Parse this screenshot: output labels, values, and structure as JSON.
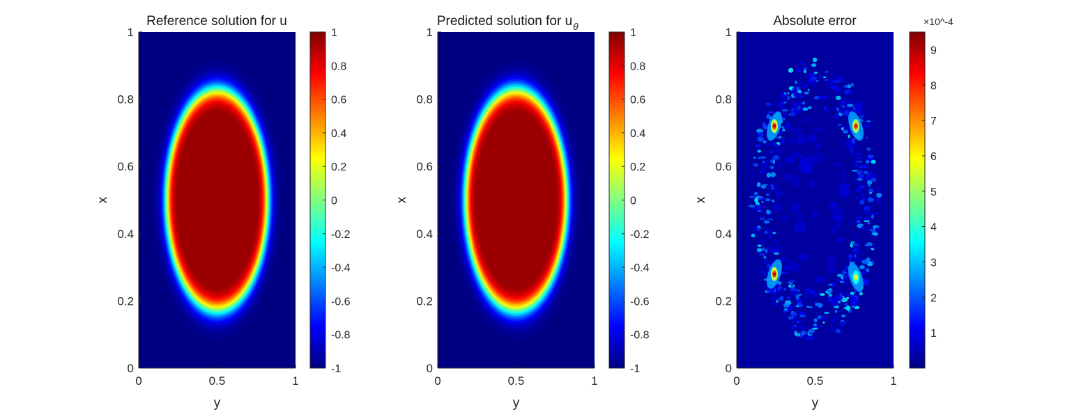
{
  "chart_data": [
    {
      "type": "heatmap",
      "title": "Reference solution for u",
      "xlabel": "y",
      "ylabel": "x",
      "xlim": [
        0,
        1
      ],
      "ylim": [
        0,
        1
      ],
      "xticks": [
        "0",
        "0.5",
        "1"
      ],
      "yticks": [
        "0",
        "0.2",
        "0.4",
        "0.6",
        "0.8",
        "1"
      ],
      "colormap": "jet",
      "clim": [
        -1,
        1
      ],
      "colorbar_ticks": [
        "-1",
        "-0.8",
        "-0.6",
        "-0.4",
        "-0.2",
        "0",
        "0.2",
        "0.4",
        "0.6",
        "0.8",
        "1"
      ],
      "field": {
        "shape": "ellipse",
        "center": [
          0.5,
          0.5
        ],
        "semi_axis_y": 0.325,
        "semi_axis_x": 0.33,
        "inside_value": 1,
        "outside_value": -1,
        "interface_width": 0.04
      }
    },
    {
      "type": "heatmap",
      "title": "Predicted solution for u",
      "title_subscript": "θ",
      "xlabel": "y",
      "ylabel": "x",
      "xlim": [
        0,
        1
      ],
      "ylim": [
        0,
        1
      ],
      "xticks": [
        "0",
        "0.5",
        "1"
      ],
      "yticks": [
        "0",
        "0.2",
        "0.4",
        "0.6",
        "0.8",
        "1"
      ],
      "colormap": "jet",
      "clim": [
        -1,
        1
      ],
      "colorbar_ticks": [
        "-1",
        "-0.8",
        "-0.6",
        "-0.4",
        "-0.2",
        "0",
        "0.2",
        "0.4",
        "0.6",
        "0.8",
        "1"
      ],
      "field": {
        "shape": "ellipse",
        "center": [
          0.5,
          0.5
        ],
        "semi_axis_y": 0.325,
        "semi_axis_x": 0.33,
        "inside_value": 1,
        "outside_value": -1,
        "interface_width": 0.04
      }
    },
    {
      "type": "heatmap",
      "title": "Absolute error",
      "xlabel": "y",
      "ylabel": "x",
      "xlim": [
        0,
        1
      ],
      "ylim": [
        0,
        1
      ],
      "xticks": [
        "0",
        "0.5",
        "1"
      ],
      "yticks": [
        "0",
        "0.2",
        "0.4",
        "0.6",
        "0.8",
        "1"
      ],
      "colormap": "jet",
      "clim": [
        0,
        0.00095
      ],
      "colorbar_ticks": [
        "1",
        "2",
        "3",
        "4",
        "5",
        "6",
        "7",
        "8",
        "9"
      ],
      "colorbar_exponent": "×10^-4",
      "peaks": [
        {
          "y": 0.24,
          "x": 0.72,
          "value": 0.0009
        },
        {
          "y": 0.76,
          "x": 0.72,
          "value": 0.00085
        },
        {
          "y": 0.24,
          "x": 0.28,
          "value": 0.0009
        },
        {
          "y": 0.76,
          "x": 0.27,
          "value": 0.0006
        }
      ]
    }
  ]
}
